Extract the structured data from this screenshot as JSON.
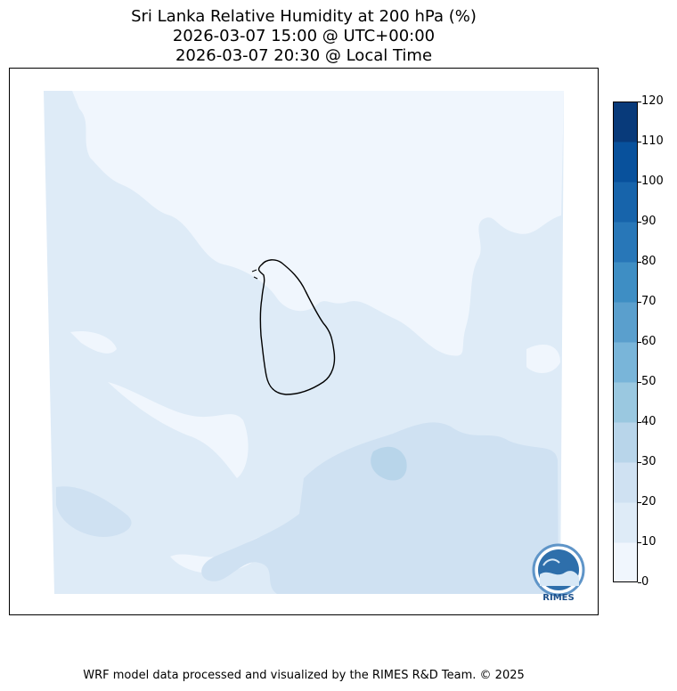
{
  "header": {
    "title_line1": "Sri Lanka Relative Humidity at 200 hPa (%)",
    "title_line2": "2026-03-07 15:00 @ UTC+00:00",
    "title_line3": "2026-03-07 20:30 @ Local Time"
  },
  "colorbar": {
    "ticks": [
      "0",
      "10",
      "20",
      "30",
      "40",
      "50",
      "60",
      "70",
      "80",
      "90",
      "100",
      "110",
      "120"
    ],
    "colors": [
      "#f0f6fd",
      "#deebf7",
      "#cfe1f2",
      "#b8d5ea",
      "#9ac8e0",
      "#79b5d9",
      "#5a9fcd",
      "#3e8ec4",
      "#2877b8",
      "#1764ab",
      "#08519c",
      "#083a7a"
    ]
  },
  "logo": {
    "text": "RIMES"
  },
  "footer": {
    "credit": "WRF model data processed and visualized by the RIMES R&D Team. © 2025"
  }
}
